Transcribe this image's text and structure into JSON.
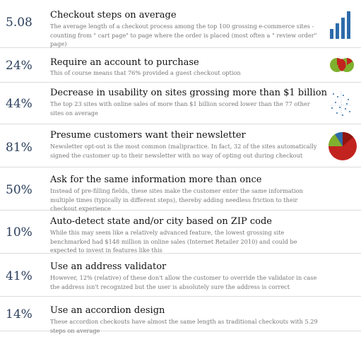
{
  "items": [
    {
      "stat": "5.08",
      "title": "Checkout steps on average",
      "desc": "The average length of a checkout process among the top 100 grossing e-commerce sites - counting from \" cart page\" to page where the order is placed (most often a \" review order\" page)",
      "figure": "bar-chart-icon"
    },
    {
      "stat": "24%",
      "title": "Require an account to purchase",
      "desc": "This of course means that 76% provided a guest checkout option",
      "figure": "venn-diagram-icon"
    },
    {
      "stat": "44%",
      "title": "Decrease in usability on sites grossing more than $1 billion",
      "desc": "The top 23 sites with online sales of more than $1 billion scored lower than the 77 other sites on average",
      "figure": "scatter-plot-icon"
    },
    {
      "stat": "81%",
      "title": "Presume customers want their newsletter",
      "desc": "Newsletter opt-out is the most common (mal)practice. In fact, 32 of the sites automatically signed the customer up to their newsletter with no way of opting out during checkout",
      "figure": "pie-chart-icon"
    },
    {
      "stat": "50%",
      "title": "Ask for the same information more than once",
      "desc": "Instead of pre-filling fields, these sites make the customer enter the same information multiple times (typically in different steps), thereby adding needless friction to their checkout experience"
    },
    {
      "stat": "10%",
      "title": "Auto-detect state and/or city based on ZIP code",
      "desc": "While this may seem like a relatively advanced feature, the lowest grossing site benchmarked had $148 million in online sales (Internet Retailer 2010) and could be expected to invest in features like this"
    },
    {
      "stat": "41%",
      "title": "Use an address validator",
      "desc": "However, 12% (relative) of these don't allow the customer to override the validator in case the address isn't recognized but the user is absolutely sure the address is correct"
    },
    {
      "stat": "14%",
      "title": "Use an accordion design",
      "desc": "These accordion checkouts have almost the same length as traditional checkouts with 5.29 steps on average"
    }
  ],
  "colors": {
    "stat": "#2a3e5c",
    "bar": "#2d6bab",
    "venn_green": "#7fb02e",
    "venn_red": "#c2231f",
    "pie_red": "#c2231f",
    "pie_dark_red": "#8f1510",
    "pie_blue": "#2d6bab",
    "pie_green": "#7fb02e"
  }
}
